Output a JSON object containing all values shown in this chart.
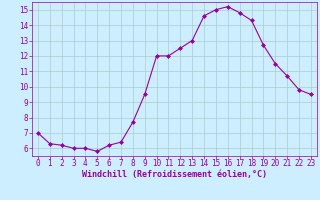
{
  "x": [
    0,
    1,
    2,
    3,
    4,
    5,
    6,
    7,
    8,
    9,
    10,
    11,
    12,
    13,
    14,
    15,
    16,
    17,
    18,
    19,
    20,
    21,
    22,
    23
  ],
  "y": [
    7.0,
    6.3,
    6.2,
    6.0,
    6.0,
    5.8,
    6.2,
    6.4,
    7.7,
    9.5,
    12.0,
    12.0,
    12.5,
    13.0,
    14.6,
    15.0,
    15.2,
    14.8,
    14.3,
    12.7,
    11.5,
    10.7,
    9.8,
    9.5
  ],
  "line_color": "#990099",
  "marker": "D",
  "marker_size": 2,
  "bg_color": "#cceeff",
  "grid_color": "#aacccc",
  "xlabel": "Windchill (Refroidissement éolien,°C)",
  "xlabel_color": "#990099",
  "tick_color": "#990099",
  "xlim": [
    -0.5,
    23.5
  ],
  "ylim": [
    5.5,
    15.5
  ],
  "yticks": [
    6,
    7,
    8,
    9,
    10,
    11,
    12,
    13,
    14,
    15
  ],
  "xticks": [
    0,
    1,
    2,
    3,
    4,
    5,
    6,
    7,
    8,
    9,
    10,
    11,
    12,
    13,
    14,
    15,
    16,
    17,
    18,
    19,
    20,
    21,
    22,
    23
  ],
  "tick_fontsize": 5.5,
  "xlabel_fontsize": 6.0
}
